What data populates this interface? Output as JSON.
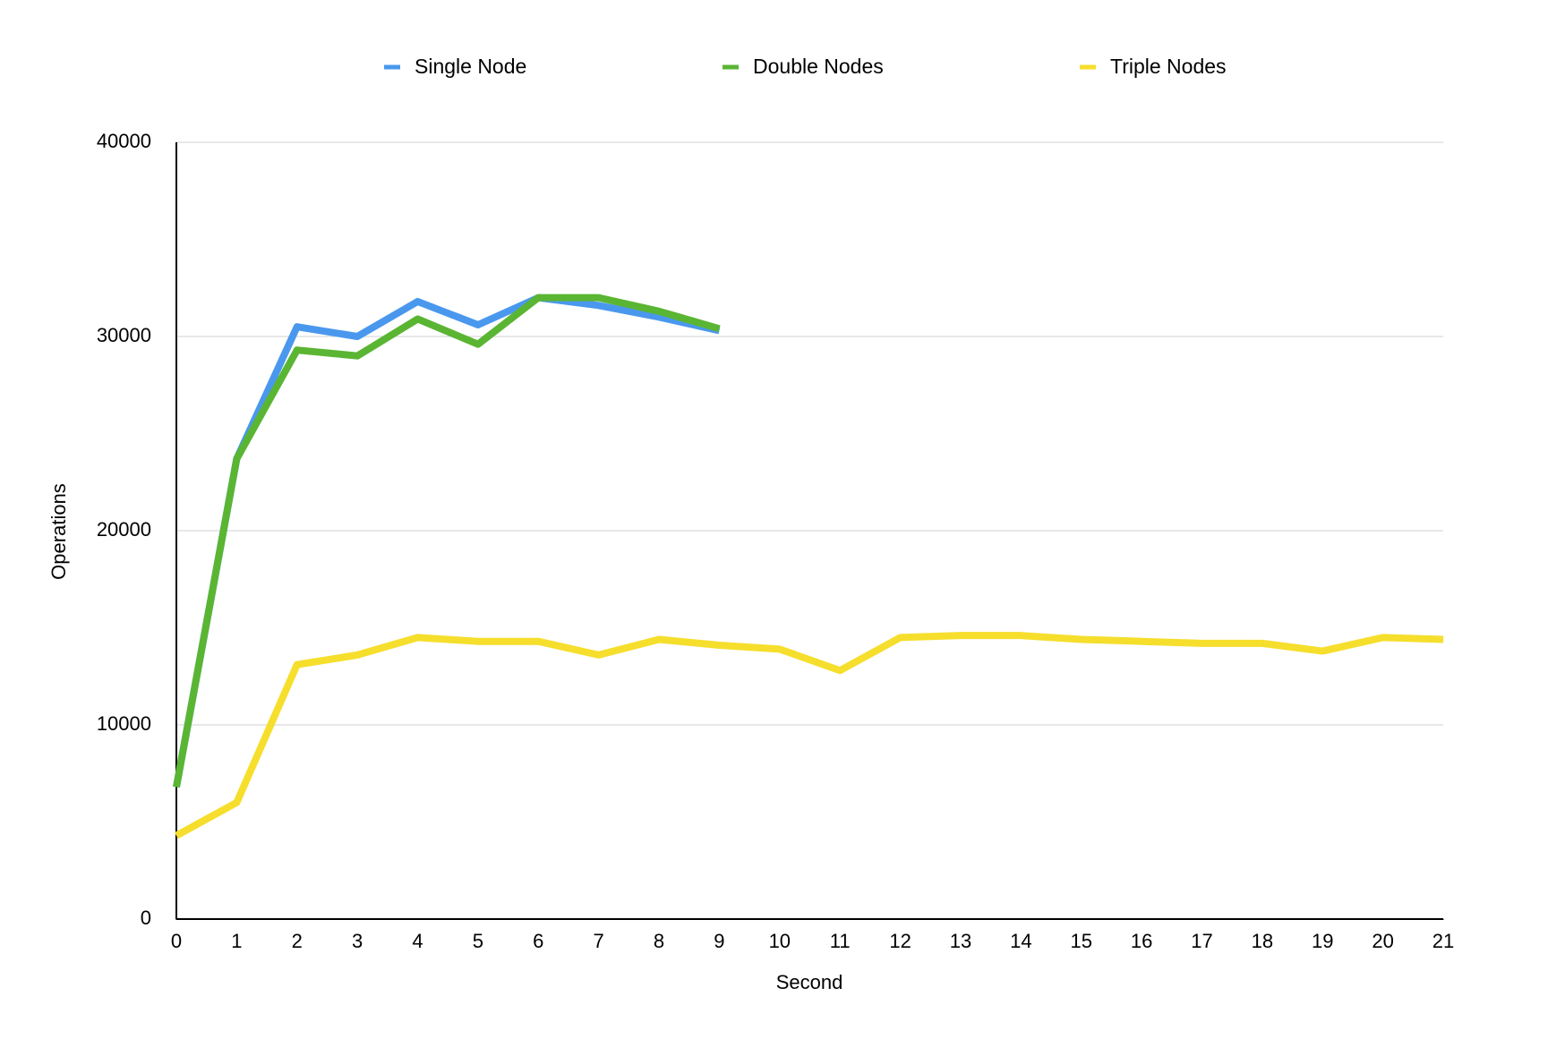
{
  "chart_data": {
    "type": "line",
    "x": [
      0,
      1,
      2,
      3,
      4,
      5,
      6,
      7,
      8,
      9,
      10,
      11,
      12,
      13,
      14,
      15,
      16,
      17,
      18,
      19,
      20,
      21
    ],
    "series": [
      {
        "name": "Single Node",
        "color": "#4a98ee",
        "values": [
          6800,
          23700,
          30500,
          30000,
          31800,
          30600,
          32000,
          31600,
          31000,
          30300,
          null,
          null,
          null,
          null,
          null,
          null,
          null,
          null,
          null,
          null,
          null,
          null
        ]
      },
      {
        "name": "Double Nodes",
        "color": "#5ab533",
        "values": [
          6800,
          23700,
          29300,
          29000,
          30900,
          29600,
          32000,
          32000,
          31300,
          30400,
          null,
          null,
          null,
          null,
          null,
          null,
          null,
          null,
          null,
          null,
          null,
          null
        ]
      },
      {
        "name": "Triple Nodes",
        "color": "#f6de2c",
        "values": [
          4300,
          6000,
          13100,
          13600,
          14500,
          14300,
          14300,
          13600,
          14400,
          14100,
          13900,
          12800,
          14500,
          14600,
          14600,
          14400,
          14300,
          14200,
          14200,
          13800,
          14500,
          14400
        ]
      }
    ],
    "xlabel": "Second",
    "ylabel": "Operations",
    "xlim": [
      0,
      21
    ],
    "xticks": [
      0,
      1,
      2,
      3,
      4,
      5,
      6,
      7,
      8,
      9,
      10,
      11,
      12,
      13,
      14,
      15,
      16,
      17,
      18,
      19,
      20,
      21
    ],
    "ylim": [
      0,
      40000
    ],
    "yticks": [
      0,
      10000,
      20000,
      30000,
      40000
    ],
    "grid": true,
    "legend": "top"
  }
}
